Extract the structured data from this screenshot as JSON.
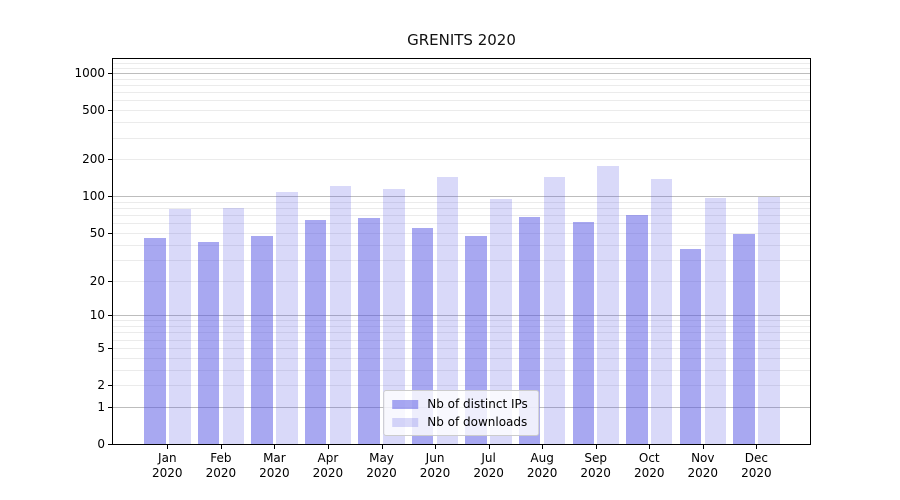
{
  "title": "GRENITS 2020",
  "chart_data": {
    "type": "bar",
    "title": "GRENITS 2020",
    "xlabel": "",
    "ylabel": "",
    "yscale": "log1p",
    "ylim": [
      0,
      1300
    ],
    "y_ticks": [
      0,
      1,
      2,
      5,
      10,
      20,
      50,
      100,
      200,
      500,
      1000
    ],
    "grid": {
      "major_at": [
        1,
        10,
        100,
        1000
      ],
      "minor_at": [
        2,
        3,
        4,
        5,
        6,
        7,
        8,
        9,
        20,
        30,
        40,
        50,
        60,
        70,
        80,
        90,
        200,
        300,
        400,
        500,
        600,
        700,
        800,
        900,
        1100,
        1200
      ],
      "major_color": "#bdbdbd",
      "minor_color": "#ebebeb"
    },
    "x_tick_labels": [
      {
        "label": "Jan",
        "sublabel": "2020"
      },
      {
        "label": "Feb",
        "sublabel": "2020"
      },
      {
        "label": "Mar",
        "sublabel": "2020"
      },
      {
        "label": "Apr",
        "sublabel": "2020"
      },
      {
        "label": "May",
        "sublabel": "2020"
      },
      {
        "label": "Jun",
        "sublabel": "2020"
      },
      {
        "label": "Jul",
        "sublabel": "2020"
      },
      {
        "label": "Aug",
        "sublabel": "2020"
      },
      {
        "label": "Sep",
        "sublabel": "2020"
      },
      {
        "label": "Oct",
        "sublabel": "2020"
      },
      {
        "label": "Nov",
        "sublabel": "2020"
      },
      {
        "label": "Dec",
        "sublabel": "2020"
      }
    ],
    "series": [
      {
        "name": "Nb of distinct IPs",
        "color": "rgba(81,81,227,0.50)",
        "values": [
          45,
          42,
          47,
          64,
          66,
          55,
          47,
          68,
          61,
          70,
          37,
          49
        ]
      },
      {
        "name": "Nb of downloads",
        "color": "rgba(81,81,227,0.22)",
        "values": [
          78,
          80,
          109,
          122,
          114,
          143,
          95,
          143,
          175,
          138,
          97,
          98
        ]
      }
    ],
    "legend_position": "lower center"
  },
  "colors": {
    "background": "#ffffff",
    "spine": "#000000",
    "text": "#000000"
  }
}
